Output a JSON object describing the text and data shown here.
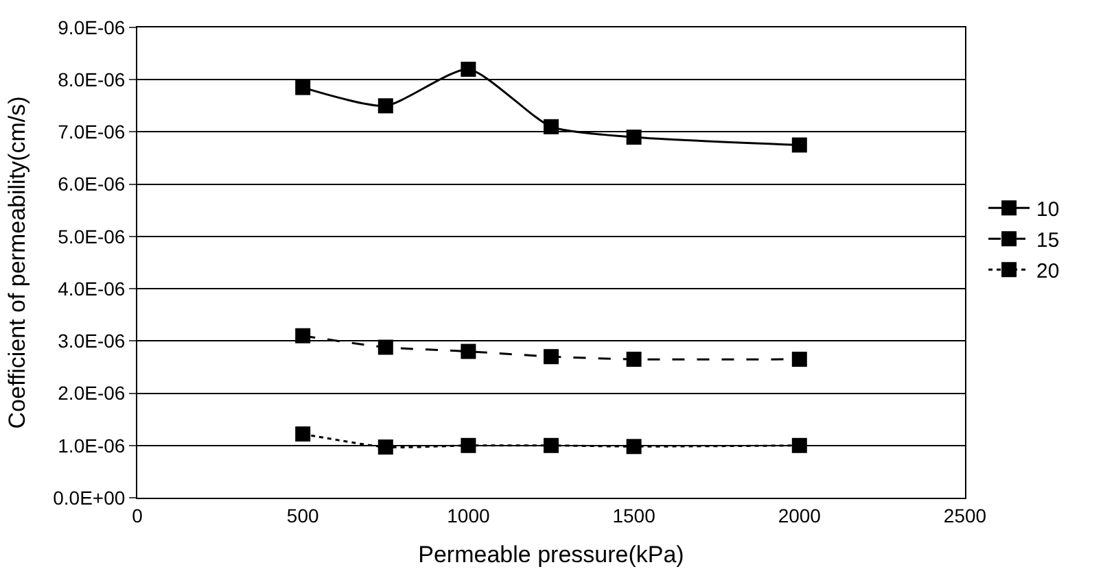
{
  "chart_data": {
    "type": "line",
    "xlabel": "Permeable pressure(kPa)",
    "ylabel": "Coefficient of permeability(cm/s)",
    "x": [
      500,
      750,
      1000,
      1250,
      1500,
      2000
    ],
    "series": [
      {
        "name": "10",
        "color": "#000000",
        "line_style": "solid",
        "values": [
          7.85e-06,
          7.5e-06,
          8.2e-06,
          7.1e-06,
          6.9e-06,
          6.75e-06
        ]
      },
      {
        "name": "15",
        "color": "#000000",
        "line_style": "dashed",
        "values": [
          3.1e-06,
          2.88e-06,
          2.8e-06,
          2.7e-06,
          2.65e-06,
          2.65e-06
        ]
      },
      {
        "name": "20",
        "color": "#000000",
        "line_style": "dotted",
        "values": [
          1.22e-06,
          9.7e-07,
          1e-06,
          1e-06,
          9.8e-07,
          1e-06
        ]
      }
    ],
    "xlim": [
      0,
      2500
    ],
    "xticks": [
      0,
      500,
      1000,
      1500,
      2000,
      2500
    ],
    "ylim": [
      0,
      9e-06
    ],
    "yticks": [
      {
        "value": 0,
        "label": "0.0E+00"
      },
      {
        "value": 1e-06,
        "label": "1.0E-06"
      },
      {
        "value": 2e-06,
        "label": "2.0E-06"
      },
      {
        "value": 3e-06,
        "label": "3.0E-06"
      },
      {
        "value": 4e-06,
        "label": "4.0E-06"
      },
      {
        "value": 5e-06,
        "label": "5.0E-06"
      },
      {
        "value": 6e-06,
        "label": "6.0E-06"
      },
      {
        "value": 7e-06,
        "label": "7.0E-06"
      },
      {
        "value": 8e-06,
        "label": "8.0E-06"
      },
      {
        "value": 9e-06,
        "label": "9.0E-06"
      }
    ],
    "grid": "y",
    "legend": "right",
    "marker": "square"
  }
}
